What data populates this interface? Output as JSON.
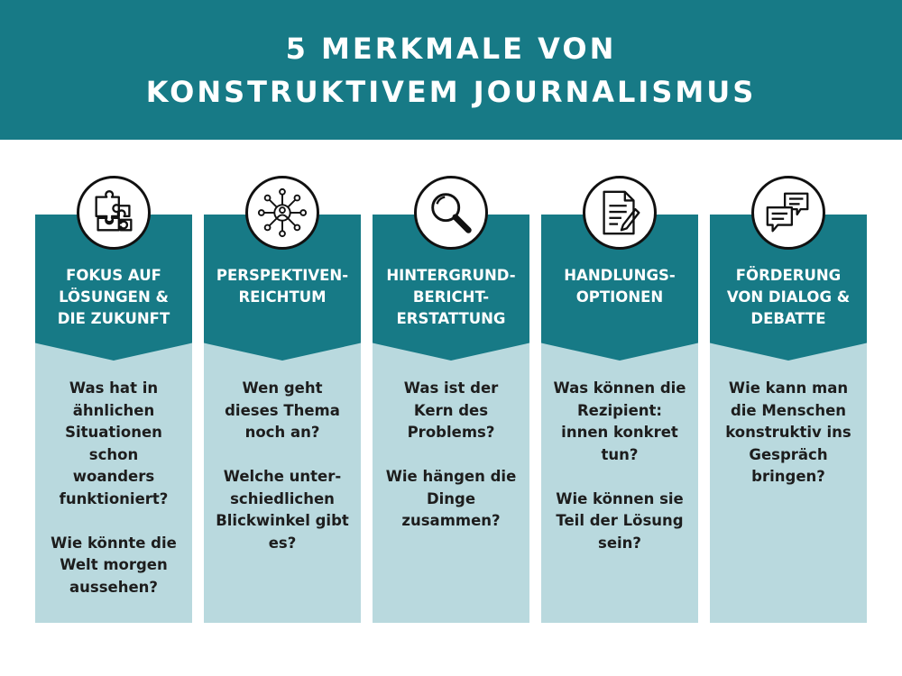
{
  "header": {
    "title_line1": "5 MERKMALE VON",
    "title_line2": "KONSTRUKTIVEM JOURNALISMUS"
  },
  "columns": [
    {
      "icon": "puzzle-icon",
      "title": "FOKUS AUF\nLÖSUNGEN &\nDIE ZUKUNFT",
      "text": "Was hat in\nähnlichen\nSituationen\nschon\nwoanders\nfunktioniert?\n\nWie könnte die\nWelt morgen\naussehen?"
    },
    {
      "icon": "network-person-icon",
      "title": "PERSPEKTIVEN-\nREICHTUM",
      "text": "Wen geht\ndieses Thema\nnoch an?\n\nWelche unter-\nschiedlichen\nBlickwinkel gibt\nes?"
    },
    {
      "icon": "magnifier-icon",
      "title": "HINTERGRUND-\nBERICHT-\nERSTATTUNG",
      "text": "Was ist der\nKern des\nProblems?\n\nWie hängen die\nDinge\nzusammen?"
    },
    {
      "icon": "document-pen-icon",
      "title": "HANDLUNGS-\nOPTIONEN",
      "text": "Was können die\nRezipient:\ninnen konkret\ntun?\n\nWie können sie\nTeil der Lösung\nsein?"
    },
    {
      "icon": "speech-bubbles-icon",
      "title": "FÖRDERUNG\nVON DIALOG &\nDEBATTE",
      "text": "Wie kann man\ndie Menschen\nkonstruktiv ins\nGespräch\nbringen?"
    }
  ],
  "colors": {
    "teal": "#177a86",
    "light": "#b9d9de",
    "text": "#1d1d1d"
  }
}
